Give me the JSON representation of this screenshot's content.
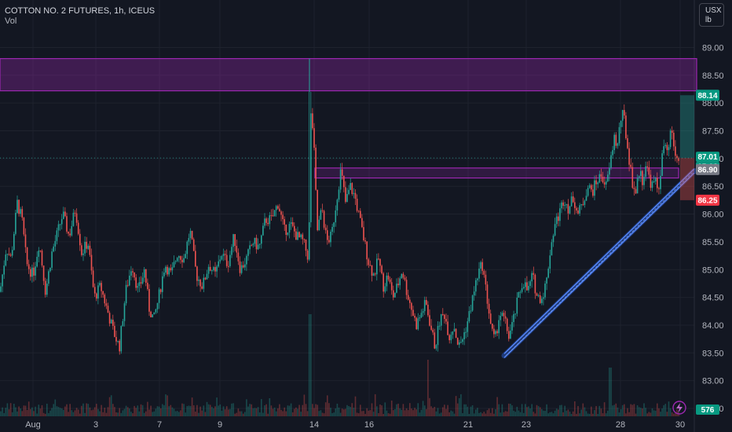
{
  "header": {
    "symbol_line": "COTTON NO. 2 FUTURES, 1h, ICEUS",
    "vol_label": "Vol"
  },
  "units": {
    "line1": "USX",
    "line2": "lb"
  },
  "colors": {
    "background": "#131722",
    "grid": "#1e222d",
    "up": "#26a69a",
    "down": "#ef5350",
    "zone": "#9c27b0",
    "trendline": "#2962ff",
    "last_price_bg": "#089981",
    "bid_bg": "#787b86",
    "ask_bg": "#f23645"
  },
  "chart_data": {
    "type": "candlestick",
    "y_ticks": [
      "89.00",
      "88.50",
      "88.00",
      "87.50",
      "87.00",
      "86.50",
      "86.00",
      "85.50",
      "85.00",
      "84.50",
      "84.00",
      "83.50",
      "83.00",
      "82.50"
    ],
    "ylim": [
      82.45,
      89.3
    ],
    "x_ticks": [
      "Aug",
      "3",
      "7",
      "9",
      "14",
      "16",
      "21",
      "23",
      "28",
      "30"
    ],
    "price_labels": {
      "high": "88.14",
      "last": "87.01",
      "countdown": "15:03",
      "mid": "86.90",
      "low": "86.25"
    },
    "volume_label": "576",
    "zones": [
      {
        "y_from": 88.22,
        "y_to": 88.8
      },
      {
        "y_from": 86.65,
        "y_to": 86.83
      }
    ],
    "trendline": {
      "from": {
        "x": "Aug 22",
        "y": 83.45
      },
      "to": {
        "x": "Aug 30",
        "y": 86.75
      }
    },
    "path": [
      [
        0,
        84.6
      ],
      [
        8,
        85.4
      ],
      [
        14,
        85.2
      ],
      [
        22,
        86.2
      ],
      [
        28,
        85.9
      ],
      [
        34,
        85.1
      ],
      [
        42,
        84.9
      ],
      [
        50,
        85.5
      ],
      [
        58,
        84.6
      ],
      [
        66,
        85.3
      ],
      [
        74,
        85.7
      ],
      [
        80,
        86.0
      ],
      [
        88,
        85.6
      ],
      [
        96,
        86.1
      ],
      [
        104,
        85.3
      ],
      [
        112,
        85.5
      ],
      [
        120,
        84.5
      ],
      [
        128,
        84.7
      ],
      [
        136,
        84.3
      ],
      [
        144,
        83.9
      ],
      [
        152,
        83.6
      ],
      [
        160,
        84.6
      ],
      [
        168,
        85.1
      ],
      [
        176,
        84.6
      ],
      [
        184,
        85.0
      ],
      [
        190,
        84.3
      ],
      [
        196,
        84.1
      ],
      [
        202,
        84.5
      ],
      [
        210,
        85.1
      ],
      [
        218,
        84.9
      ],
      [
        226,
        85.3
      ],
      [
        234,
        85.2
      ],
      [
        242,
        85.7
      ],
      [
        250,
        84.9
      ],
      [
        258,
        84.7
      ],
      [
        266,
        85.1
      ],
      [
        274,
        84.9
      ],
      [
        282,
        85.3
      ],
      [
        290,
        85.1
      ],
      [
        298,
        85.6
      ],
      [
        306,
        85.0
      ],
      [
        314,
        85.2
      ],
      [
        322,
        85.5
      ],
      [
        330,
        85.4
      ],
      [
        338,
        85.9
      ],
      [
        346,
        85.9
      ],
      [
        354,
        86.2
      ],
      [
        362,
        85.7
      ],
      [
        370,
        85.8
      ],
      [
        378,
        85.6
      ],
      [
        386,
        85.5
      ],
      [
        393,
        85.2
      ],
      [
        396,
        88.0
      ],
      [
        400,
        87.1
      ],
      [
        404,
        85.7
      ],
      [
        410,
        86.1
      ],
      [
        416,
        85.5
      ],
      [
        422,
        85.6
      ],
      [
        428,
        86.2
      ],
      [
        434,
        86.8
      ],
      [
        440,
        86.2
      ],
      [
        446,
        86.5
      ],
      [
        452,
        86.3
      ],
      [
        458,
        85.9
      ],
      [
        464,
        85.5
      ],
      [
        470,
        85.1
      ],
      [
        476,
        84.9
      ],
      [
        482,
        85.2
      ],
      [
        488,
        84.7
      ],
      [
        494,
        84.9
      ],
      [
        500,
        84.5
      ],
      [
        506,
        84.7
      ],
      [
        512,
        85.0
      ],
      [
        518,
        84.6
      ],
      [
        524,
        84.3
      ],
      [
        530,
        84.0
      ],
      [
        536,
        84.2
      ],
      [
        542,
        84.4
      ],
      [
        548,
        84.0
      ],
      [
        554,
        83.6
      ],
      [
        560,
        84.1
      ],
      [
        566,
        84.2
      ],
      [
        572,
        83.8
      ],
      [
        578,
        84.0
      ],
      [
        584,
        83.6
      ],
      [
        590,
        83.8
      ],
      [
        596,
        84.1
      ],
      [
        602,
        84.5
      ],
      [
        608,
        84.9
      ],
      [
        614,
        85.1
      ],
      [
        618,
        84.7
      ],
      [
        622,
        84.3
      ],
      [
        626,
        83.9
      ],
      [
        630,
        83.7
      ],
      [
        636,
        84.2
      ],
      [
        642,
        84.1
      ],
      [
        648,
        83.8
      ],
      [
        654,
        84.1
      ],
      [
        660,
        84.5
      ],
      [
        666,
        84.8
      ],
      [
        672,
        84.6
      ],
      [
        678,
        84.9
      ],
      [
        684,
        84.5
      ],
      [
        690,
        84.5
      ],
      [
        696,
        84.8
      ],
      [
        700,
        85.3
      ],
      [
        706,
        85.8
      ],
      [
        712,
        86.0
      ],
      [
        718,
        86.3
      ],
      [
        724,
        86.1
      ],
      [
        730,
        86.3
      ],
      [
        736,
        86.0
      ],
      [
        742,
        86.2
      ],
      [
        748,
        86.5
      ],
      [
        754,
        86.4
      ],
      [
        760,
        86.6
      ],
      [
        766,
        86.7
      ],
      [
        772,
        86.5
      ],
      [
        778,
        87.0
      ],
      [
        782,
        87.4
      ],
      [
        786,
        87.2
      ],
      [
        790,
        87.7
      ],
      [
        794,
        87.8
      ],
      [
        798,
        87.3
      ],
      [
        802,
        86.9
      ],
      [
        806,
        86.5
      ],
      [
        810,
        86.4
      ],
      [
        814,
        86.8
      ],
      [
        818,
        86.6
      ],
      [
        822,
        86.9
      ],
      [
        826,
        86.7
      ],
      [
        830,
        86.5
      ],
      [
        834,
        86.6
      ],
      [
        838,
        86.4
      ],
      [
        842,
        86.9
      ],
      [
        846,
        87.3
      ],
      [
        850,
        87.0
      ],
      [
        854,
        87.5
      ],
      [
        858,
        87.2
      ],
      [
        862,
        86.95
      ],
      [
        866,
        87.01
      ]
    ]
  }
}
